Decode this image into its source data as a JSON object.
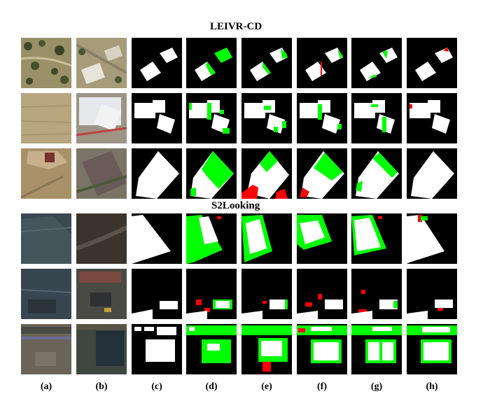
{
  "titles": {
    "dataset1": "LEIVR-CD",
    "dataset2": "S2Looking"
  },
  "columns": [
    "(a)",
    "(b)",
    "(c)",
    "(d)",
    "(e)",
    "(f)",
    "(g)",
    "(h)"
  ],
  "legend_colors": {
    "true_positive": "#ffffff",
    "true_negative": "#000000",
    "false_positive": "#ff0000",
    "false_negative": "#00ff00"
  }
}
